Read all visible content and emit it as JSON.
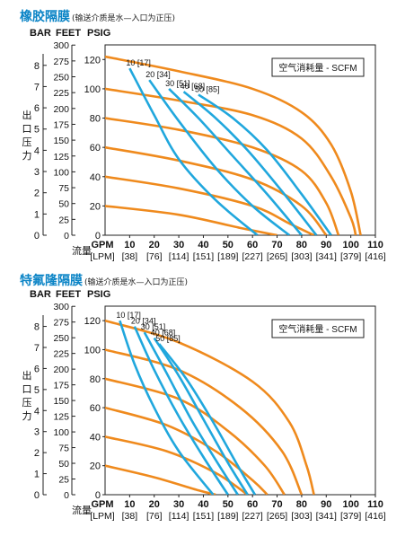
{
  "colors": {
    "title": "#0b84c6",
    "curve_pressure": "#ef8a1d",
    "curve_air": "#20a7dd",
    "frame": "#222222"
  },
  "axis_headers": {
    "bar": "BAR",
    "feet": "FEET",
    "psig": "PSIG",
    "gpm": "GPM",
    "lpm": "[LPM]"
  },
  "y_side_label": "出口压力",
  "x_side_label": "流量",
  "legend_label": "空气消耗量 - SCFM",
  "charts": [
    {
      "title": "橡胶隔膜",
      "note": "(输送介质是水—入口为正压)"
    },
    {
      "title": "特氟隆隔膜",
      "note": "(输送介质是水—入口为正压)"
    }
  ],
  "chart_data": [
    {
      "type": "line",
      "title": "橡胶隔膜",
      "xlabel": "GPM [LPM]",
      "ylabel": "出口压力",
      "xlim": [
        0,
        110
      ],
      "ylim": [
        0,
        130
      ],
      "x_ticks": [
        10,
        20,
        30,
        40,
        50,
        60,
        70,
        80,
        90,
        100,
        110
      ],
      "x_tick_labels_gpm": [
        "10",
        "20",
        "30",
        "40",
        "50",
        "60",
        "70",
        "80",
        "90",
        "100",
        "110"
      ],
      "x_tick_labels_lpm": [
        "[38]",
        "[76]",
        "[114]",
        "[151]",
        "[189]",
        "[227]",
        "[265]",
        "[303]",
        "[341]",
        "[379]",
        "[416]"
      ],
      "psig_ticks": [
        "0",
        "20",
        "40",
        "60",
        "80",
        "100",
        "120"
      ],
      "feet_ticks": [
        "0",
        "25",
        "50",
        "75",
        "100",
        "125",
        "150",
        "175",
        "200",
        "225",
        "250",
        "275",
        "300"
      ],
      "bar_ticks": [
        "0",
        "1",
        "2",
        "3",
        "4",
        "5",
        "6",
        "7",
        "8"
      ],
      "legend": "空气消耗量 - SCFM",
      "performance_curves": [
        {
          "points": [
            [
              0,
              122
            ],
            [
              30,
              112
            ],
            [
              60,
              100
            ],
            [
              80,
              84
            ],
            [
              92,
              62
            ],
            [
              100,
              30
            ],
            [
              104,
              0
            ]
          ]
        },
        {
          "points": [
            [
              0,
              100
            ],
            [
              30,
              92
            ],
            [
              60,
              82
            ],
            [
              80,
              66
            ],
            [
              92,
              40
            ],
            [
              100,
              12
            ],
            [
              102,
              0
            ]
          ]
        },
        {
          "points": [
            [
              0,
              80
            ],
            [
              30,
              72
            ],
            [
              60,
              60
            ],
            [
              80,
              44
            ],
            [
              90,
              22
            ],
            [
              95,
              0
            ]
          ]
        },
        {
          "points": [
            [
              0,
              60
            ],
            [
              30,
              51
            ],
            [
              60,
              38
            ],
            [
              80,
              20
            ],
            [
              90,
              0
            ]
          ]
        },
        {
          "points": [
            [
              0,
              40
            ],
            [
              30,
              32
            ],
            [
              60,
              20
            ],
            [
              75,
              8
            ],
            [
              85,
              0
            ]
          ]
        },
        {
          "points": [
            [
              0,
              20
            ],
            [
              30,
              14
            ],
            [
              55,
              5
            ],
            [
              70,
              0
            ]
          ]
        }
      ],
      "air_curves": [
        {
          "label": "10 [17]",
          "points": [
            [
              10,
              114
            ],
            [
              20,
              82
            ],
            [
              30,
              52
            ],
            [
              45,
              24
            ],
            [
              62,
              0
            ]
          ]
        },
        {
          "label": "20 [34]",
          "points": [
            [
              18,
              106
            ],
            [
              30,
              78
            ],
            [
              45,
              46
            ],
            [
              60,
              20
            ],
            [
              75,
              0
            ]
          ]
        },
        {
          "label": "30 [51]",
          "points": [
            [
              26,
              100
            ],
            [
              38,
              80
            ],
            [
              52,
              54
            ],
            [
              66,
              28
            ],
            [
              80,
              0
            ]
          ]
        },
        {
          "label": "40 [68]",
          "points": [
            [
              32,
              98
            ],
            [
              45,
              80
            ],
            [
              58,
              58
            ],
            [
              72,
              30
            ],
            [
              86,
              0
            ]
          ]
        },
        {
          "label": "50 [85]",
          "points": [
            [
              38,
              96
            ],
            [
              52,
              80
            ],
            [
              66,
              58
            ],
            [
              80,
              28
            ],
            [
              92,
              0
            ]
          ]
        }
      ]
    },
    {
      "type": "line",
      "title": "特氟隆隔膜",
      "xlabel": "GPM [LPM]",
      "ylabel": "出口压力",
      "xlim": [
        0,
        110
      ],
      "ylim": [
        0,
        130
      ],
      "x_ticks": [
        10,
        20,
        30,
        40,
        50,
        60,
        70,
        80,
        90,
        100,
        110
      ],
      "x_tick_labels_gpm": [
        "10",
        "20",
        "30",
        "40",
        "50",
        "60",
        "70",
        "80",
        "90",
        "100",
        "110"
      ],
      "x_tick_labels_lpm": [
        "[38]",
        "[76]",
        "[114]",
        "[151]",
        "[189]",
        "[227]",
        "[265]",
        "[303]",
        "[341]",
        "[379]",
        "[416]"
      ],
      "psig_ticks": [
        "0",
        "20",
        "40",
        "60",
        "80",
        "100",
        "120"
      ],
      "feet_ticks": [
        "0",
        "25",
        "50",
        "75",
        "100",
        "125",
        "150",
        "175",
        "200",
        "225",
        "250",
        "275",
        "300"
      ],
      "bar_ticks": [
        "0",
        "1",
        "2",
        "3",
        "4",
        "5",
        "6",
        "7",
        "8"
      ],
      "legend": "空气消耗量 - SCFM",
      "performance_curves": [
        {
          "points": [
            [
              0,
              120
            ],
            [
              30,
              105
            ],
            [
              60,
              78
            ],
            [
              75,
              50
            ],
            [
              82,
              20
            ],
            [
              85,
              0
            ]
          ]
        },
        {
          "points": [
            [
              0,
              100
            ],
            [
              30,
              86
            ],
            [
              55,
              60
            ],
            [
              72,
              30
            ],
            [
              80,
              0
            ]
          ]
        },
        {
          "points": [
            [
              0,
              80
            ],
            [
              30,
              66
            ],
            [
              50,
              44
            ],
            [
              65,
              20
            ],
            [
              73,
              0
            ]
          ]
        },
        {
          "points": [
            [
              0,
              60
            ],
            [
              25,
              48
            ],
            [
              45,
              30
            ],
            [
              60,
              10
            ],
            [
              66,
              0
            ]
          ]
        },
        {
          "points": [
            [
              0,
              40
            ],
            [
              25,
              30
            ],
            [
              45,
              15
            ],
            [
              58,
              0
            ]
          ]
        },
        {
          "points": [
            [
              0,
              20
            ],
            [
              20,
              12
            ],
            [
              38,
              3
            ],
            [
              45,
              0
            ]
          ]
        }
      ],
      "air_curves": [
        {
          "label": "10 [17]",
          "points": [
            [
              6,
              120
            ],
            [
              12,
              90
            ],
            [
              20,
              60
            ],
            [
              30,
              30
            ],
            [
              44,
              0
            ]
          ]
        },
        {
          "label": "20 [34]",
          "points": [
            [
              12,
              116
            ],
            [
              20,
              86
            ],
            [
              30,
              54
            ],
            [
              40,
              26
            ],
            [
              50,
              0
            ]
          ]
        },
        {
          "label": "30 [51]",
          "points": [
            [
              16,
              112
            ],
            [
              25,
              84
            ],
            [
              35,
              52
            ],
            [
              45,
              24
            ],
            [
              54,
              0
            ]
          ]
        },
        {
          "label": "40 [68]",
          "points": [
            [
              20,
              108
            ],
            [
              30,
              82
            ],
            [
              40,
              52
            ],
            [
              50,
              22
            ],
            [
              58,
              0
            ]
          ]
        },
        {
          "label": "50 [85]",
          "points": [
            [
              22,
              104
            ],
            [
              33,
              80
            ],
            [
              44,
              50
            ],
            [
              54,
              20
            ],
            [
              61,
              0
            ]
          ]
        }
      ]
    }
  ]
}
